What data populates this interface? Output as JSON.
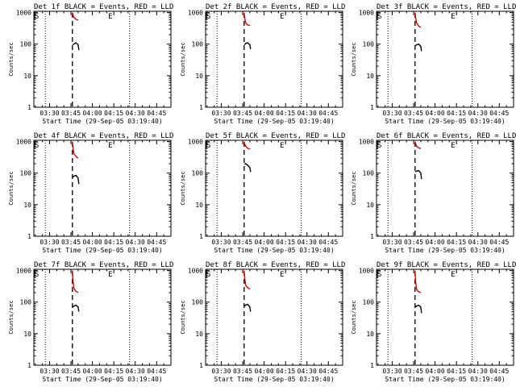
{
  "figure": {
    "panel_titles": [
      "Det 1f BLACK = Events, RED = LLD",
      "Det 2f BLACK = Events, RED = LLD",
      "Det 3f BLACK = Events, RED = LLD",
      "Det 4f BLACK = Events, RED = LLD",
      "Det 5f BLACK = Events, RED = LLD",
      "Det 6f BLACK = Events, RED = LLD",
      "Det 7f BLACK = Events, RED = LLD",
      "Det 8f BLACK = Events, RED = LLD",
      "Det 9f BLACK = Events, RED = LLD"
    ],
    "ylabel": "Counts/sec",
    "xlabel": "Start Time (29-Sep-05 03:19:40)",
    "x_tick_labels": [
      "03:30",
      "03:45",
      "04:00",
      "04:15",
      "04:30",
      "04:45"
    ],
    "y_tick_labels": [
      "1",
      "10",
      "100",
      "1000"
    ],
    "marker_start": "S",
    "marker_end": "E",
    "colors": {
      "events": "#000000",
      "lld": "#e00000",
      "axes": "#000000",
      "background": "#ffffff"
    }
  },
  "chart_data": [
    {
      "type": "line",
      "title": "Det 1f BLACK = Events, RED = LLD",
      "xlabel": "Start Time (29-Sep-05 03:19:40)",
      "ylabel": "Counts/sec",
      "x_unit": "minutes after 03:19:40",
      "ylim": [
        1,
        1100
      ],
      "y_scale": "log",
      "xlim": [
        0,
        96
      ],
      "vlines": {
        "S": 0,
        "E": 52,
        "dotted": [
          8,
          67
        ],
        "dashed": 27
      },
      "series": [
        {
          "name": "LLD",
          "color": "#e00000",
          "x": [
            27,
            27.4,
            28,
            29,
            30,
            31
          ],
          "y": [
            1000,
            850,
            720,
            640,
            600,
            580
          ]
        },
        {
          "name": "Events",
          "color": "#000000",
          "x": [
            27.3,
            28,
            29.5,
            31,
            31.5
          ],
          "y": [
            95,
            100,
            110,
            95,
            65
          ]
        }
      ]
    },
    {
      "type": "line",
      "title": "Det 2f BLACK = Events, RED = LLD",
      "xlabel": "Start Time (29-Sep-05 03:19:40)",
      "ylabel": "Counts/sec",
      "x_unit": "minutes after 03:19:40",
      "ylim": [
        1,
        1100
      ],
      "y_scale": "log",
      "xlim": [
        0,
        96
      ],
      "vlines": {
        "S": 0,
        "E": 52,
        "dotted": [
          8,
          67
        ],
        "dashed": 27
      },
      "series": [
        {
          "name": "LLD",
          "color": "#e00000",
          "x": [
            27,
            27.4,
            28,
            29,
            30,
            31
          ],
          "y": [
            1000,
            700,
            480,
            420,
            400,
            390
          ]
        },
        {
          "name": "Events",
          "color": "#000000",
          "x": [
            27.3,
            28,
            29.5,
            31,
            31.5
          ],
          "y": [
            95,
            105,
            110,
            95,
            70
          ]
        }
      ]
    },
    {
      "type": "line",
      "title": "Det 3f BLACK = Events, RED = LLD",
      "xlabel": "Start Time (29-Sep-05 03:19:40)",
      "ylabel": "Counts/sec",
      "x_unit": "minutes after 03:19:40",
      "ylim": [
        1,
        1100
      ],
      "y_scale": "log",
      "xlim": [
        0,
        96
      ],
      "vlines": {
        "S": 0,
        "E": 52,
        "dotted": [
          8,
          67
        ],
        "dashed": 27
      },
      "series": [
        {
          "name": "LLD",
          "color": "#e00000",
          "x": [
            27,
            27.4,
            28,
            29,
            30,
            31
          ],
          "y": [
            1000,
            700,
            480,
            400,
            360,
            340
          ]
        },
        {
          "name": "Events",
          "color": "#000000",
          "x": [
            27.3,
            28,
            29.5,
            31,
            31.5
          ],
          "y": [
            90,
            95,
            100,
            85,
            60
          ]
        }
      ]
    },
    {
      "type": "line",
      "title": "Det 4f BLACK = Events, RED = LLD",
      "xlabel": "Start Time (29-Sep-05 03:19:40)",
      "ylabel": "Counts/sec",
      "x_unit": "minutes after 03:19:40",
      "ylim": [
        1,
        1100
      ],
      "y_scale": "log",
      "xlim": [
        0,
        96
      ],
      "vlines": {
        "S": 0,
        "E": 52,
        "dotted": [
          8,
          67
        ],
        "dashed": 27
      },
      "series": [
        {
          "name": "LLD",
          "color": "#e00000",
          "x": [
            27,
            27.4,
            28,
            29,
            30,
            31
          ],
          "y": [
            1000,
            650,
            420,
            360,
            320,
            300
          ]
        },
        {
          "name": "Events",
          "color": "#000000",
          "x": [
            27.3,
            28,
            29.5,
            31,
            31.5
          ],
          "y": [
            75,
            80,
            85,
            70,
            45
          ]
        }
      ]
    },
    {
      "type": "line",
      "title": "Det 5f BLACK = Events, RED = LLD",
      "xlabel": "Start Time (29-Sep-05 03:19:40)",
      "ylabel": "Counts/sec",
      "x_unit": "minutes after 03:19:40",
      "ylim": [
        1,
        1100
      ],
      "y_scale": "log",
      "xlim": [
        0,
        96
      ],
      "vlines": {
        "S": 0,
        "E": 52,
        "dotted": [
          8,
          67
        ],
        "dashed": 27
      },
      "series": [
        {
          "name": "LLD",
          "color": "#e00000",
          "x": [
            27,
            27.4,
            28,
            29,
            30,
            31
          ],
          "y": [
            1000,
            850,
            720,
            640,
            600,
            580
          ]
        },
        {
          "name": "Events",
          "color": "#000000",
          "x": [
            27.3,
            28,
            29.5,
            31,
            31.5
          ],
          "y": [
            190,
            200,
            180,
            150,
            110
          ]
        }
      ]
    },
    {
      "type": "line",
      "title": "Det 6f BLACK = Events, RED = LLD",
      "xlabel": "Start Time (29-Sep-05 03:19:40)",
      "ylabel": "Counts/sec",
      "x_unit": "minutes after 03:19:40",
      "ylim": [
        1,
        1100
      ],
      "y_scale": "log",
      "xlim": [
        0,
        96
      ],
      "vlines": {
        "S": 0,
        "E": 52,
        "dotted": [
          8,
          67
        ],
        "dashed": 27
      },
      "series": [
        {
          "name": "LLD",
          "color": "#e00000",
          "x": [
            27,
            27.4,
            28,
            29,
            30,
            31
          ],
          "y": [
            1000,
            850,
            720,
            660,
            620,
            600
          ]
        },
        {
          "name": "Events",
          "color": "#000000",
          "x": [
            27.3,
            28,
            29.5,
            31,
            31.5
          ],
          "y": [
            110,
            115,
            120,
            100,
            65
          ]
        }
      ]
    },
    {
      "type": "line",
      "title": "Det 7f BLACK = Events, RED = LLD",
      "xlabel": "Start Time (29-Sep-05 03:19:40)",
      "ylabel": "Counts/sec",
      "x_unit": "minutes after 03:19:40",
      "ylim": [
        1,
        1100
      ],
      "y_scale": "log",
      "xlim": [
        0,
        96
      ],
      "vlines": {
        "S": 0,
        "E": 52,
        "dotted": [
          8,
          67
        ],
        "dashed": 27
      },
      "series": [
        {
          "name": "LLD",
          "color": "#e00000",
          "x": [
            27,
            27.4,
            28,
            29,
            30,
            31
          ],
          "y": [
            1000,
            500,
            280,
            230,
            210,
            200
          ]
        },
        {
          "name": "Events",
          "color": "#000000",
          "x": [
            27.3,
            28,
            29.5,
            31,
            31.5
          ],
          "y": [
            70,
            75,
            80,
            70,
            50
          ]
        }
      ]
    },
    {
      "type": "line",
      "title": "Det 8f BLACK = Events, RED = LLD",
      "xlabel": "Start Time (29-Sep-05 03:19:40)",
      "ylabel": "Counts/sec",
      "x_unit": "minutes after 03:19:40",
      "ylim": [
        1,
        1100
      ],
      "y_scale": "log",
      "xlim": [
        0,
        96
      ],
      "vlines": {
        "S": 0,
        "E": 52,
        "dotted": [
          8,
          67
        ],
        "dashed": 27
      },
      "series": [
        {
          "name": "LLD",
          "color": "#e00000",
          "x": [
            27,
            27.4,
            28,
            29,
            30,
            31
          ],
          "y": [
            1000,
            600,
            350,
            300,
            280,
            260
          ]
        },
        {
          "name": "Events",
          "color": "#000000",
          "x": [
            27.3,
            28,
            29.5,
            31,
            31.5
          ],
          "y": [
            75,
            80,
            85,
            70,
            50
          ]
        }
      ]
    },
    {
      "type": "line",
      "title": "Det 9f BLACK = Events, RED = LLD",
      "xlabel": "Start Time (29-Sep-05 03:19:40)",
      "ylabel": "Counts/sec",
      "x_unit": "minutes after 03:19:40",
      "ylim": [
        1,
        1100
      ],
      "y_scale": "log",
      "xlim": [
        0,
        96
      ],
      "vlines": {
        "S": 0,
        "E": 52,
        "dotted": [
          8,
          67
        ],
        "dashed": 27
      },
      "series": [
        {
          "name": "LLD",
          "color": "#e00000",
          "x": [
            27,
            27.4,
            28,
            29,
            30,
            31
          ],
          "y": [
            1000,
            450,
            260,
            220,
            210,
            200
          ]
        },
        {
          "name": "Events",
          "color": "#000000",
          "x": [
            27.3,
            28,
            29.5,
            31,
            31.5
          ],
          "y": [
            70,
            75,
            80,
            70,
            45
          ]
        }
      ]
    }
  ]
}
